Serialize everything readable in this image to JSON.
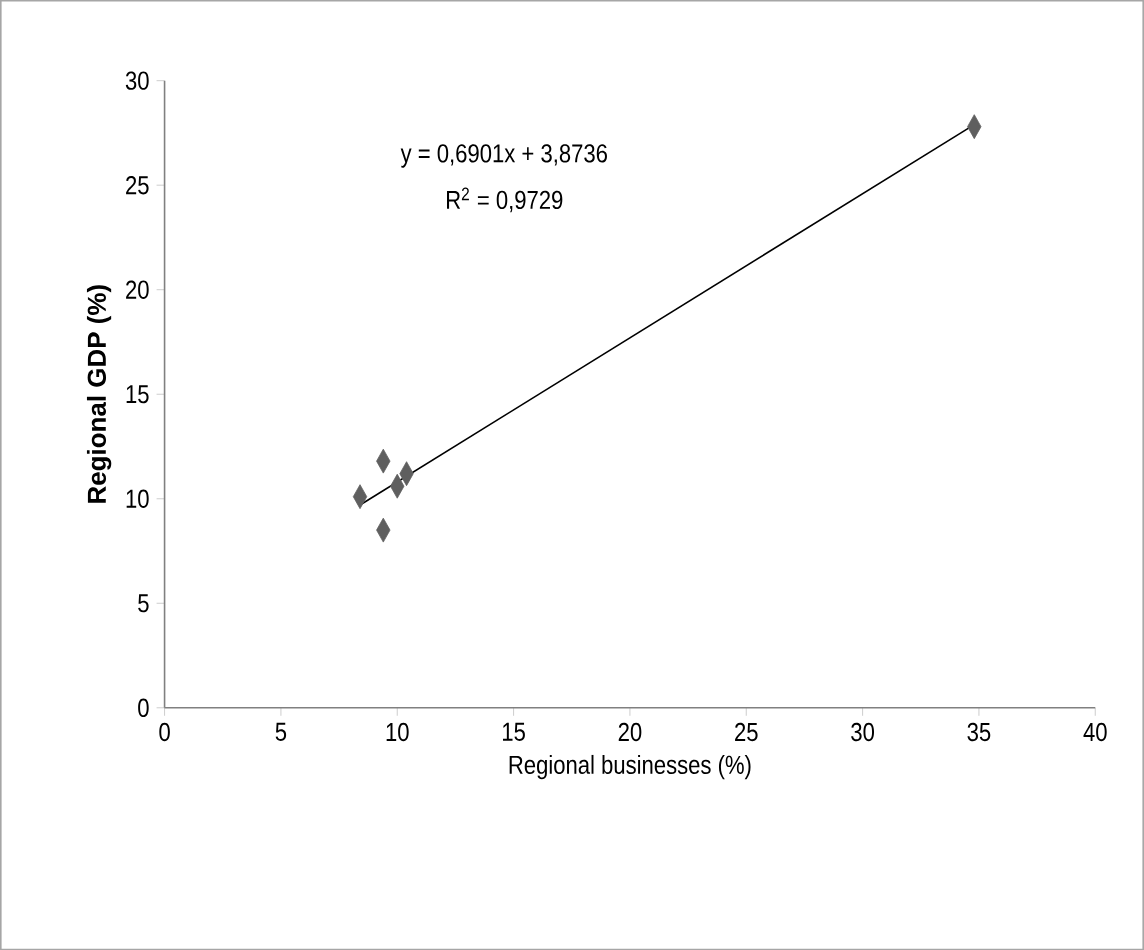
{
  "chart_data": {
    "type": "scatter",
    "xlabel": "Regional businesses (%)",
    "ylabel": "Regional GDP (%)",
    "xlim": [
      0,
      40
    ],
    "ylim": [
      0,
      30
    ],
    "xticks": [
      0,
      5,
      10,
      15,
      20,
      25,
      30,
      35,
      40
    ],
    "yticks": [
      0,
      5,
      10,
      15,
      20,
      25,
      30
    ],
    "grid": false,
    "annotations": [
      "y = 0,6901x + 3,8736",
      "R$^{2}$ = 0,9729"
    ],
    "series": [
      {
        "marker": "diamond",
        "color": "#5f5f5f",
        "x": [
          8.4,
          9.4,
          9.4,
          10.0,
          10.4,
          34.8
        ],
        "values": [
          10.1,
          8.5,
          11.8,
          10.6,
          11.2,
          27.8
        ]
      },
      {
        "type": "line",
        "marker": "none",
        "line_style": "solid",
        "color": "#000000",
        "x": [
          8.4,
          34.8
        ],
        "values": [
          9.7,
          27.9
        ]
      }
    ]
  }
}
